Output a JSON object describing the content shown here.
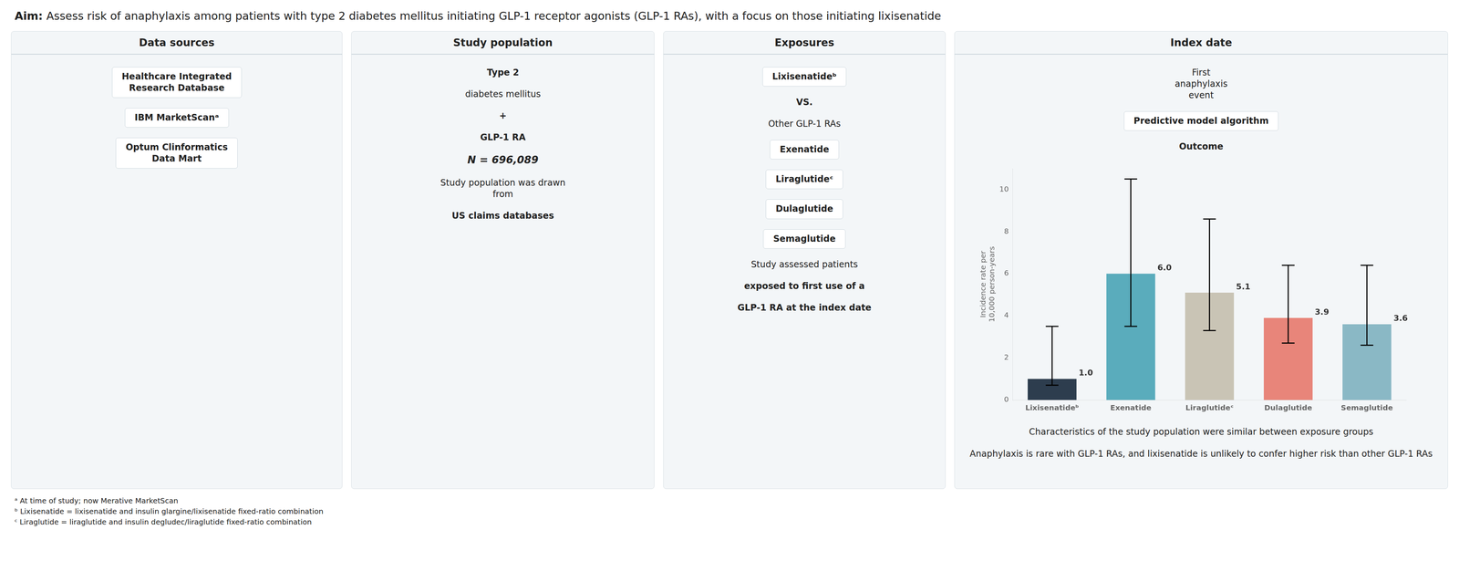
{
  "chart_data": {
    "type": "bar",
    "title": "Aim:",
    "subtitle": "Assess risk of anaphylaxis among patients with type 2 diabetes mellitus initiating GLP-1 receptor agonists (GLP-1 RAs), with a focus on those initiating lixisenatide",
    "categories": [
      "Lixisenatideᵇ",
      "Exenatide",
      "Liraglutideᶜ",
      "Dulaglutide",
      "Semaglutide"
    ],
    "values": [
      1.0,
      6.0,
      5.1,
      3.9,
      3.6
    ],
    "value_labels": [
      "1.0",
      "6.0",
      "5.1",
      "3.9",
      "3.6"
    ],
    "data_labels": true,
    "colors": [
      "#2d3d4e",
      "#5aacbc",
      "#c9c4b5",
      "#e8857a",
      "#8ab8c5"
    ],
    "error_low": [
      0.3,
      2.5,
      1.8,
      1.2,
      1.0
    ],
    "error_high": [
      2.5,
      4.5,
      3.5,
      2.5,
      2.8
    ],
    "ylabel": "Incidence rate per\n10,000 person-years",
    "ylim": [
      0,
      11
    ],
    "yticks": [
      0,
      2,
      4,
      6,
      8,
      10
    ],
    "grid": false,
    "annotations": [
      "Data sources",
      "Healthcare Integrated\nResearch Database",
      "IBM MarketScanᵃ",
      "Optum Clinformatics\nData Mart",
      "Study population",
      "Type 2",
      "diabetes mellitus",
      "+",
      "GLP-1 RA",
      "N = 696,089",
      "Study population was drawn\nfrom",
      "US claims databases",
      "Exposures",
      "Lixisenatideᵇ",
      "VS.",
      "Other GLP-1 RAs",
      "Exenatide",
      "Liraglutideᶜ",
      "Dulaglutide",
      "Semaglutide",
      "Study assessed patients",
      "exposed to first use of a",
      "GLP-1 RA at the index date",
      "Index date",
      "First\nanaphylaxis\nevent",
      "Predictive model algorithm",
      "Outcome",
      "Characteristics of the study population were similar between exposure groups",
      "Anaphylaxis is rare with GLP-1 RAs, and lixisenatide is unlikely to confer higher risk than other GLP-1 RAs",
      "ᵃ At time of study; now Merative MarketScan",
      "ᵇ Lixisenatide = lixisenatide and insulin glargine/lixisenatide fixed-ratio combination",
      "ᶜ Liraglutide = liraglutide and insulin degludec/liraglutide fixed-ratio combination"
    ]
  }
}
